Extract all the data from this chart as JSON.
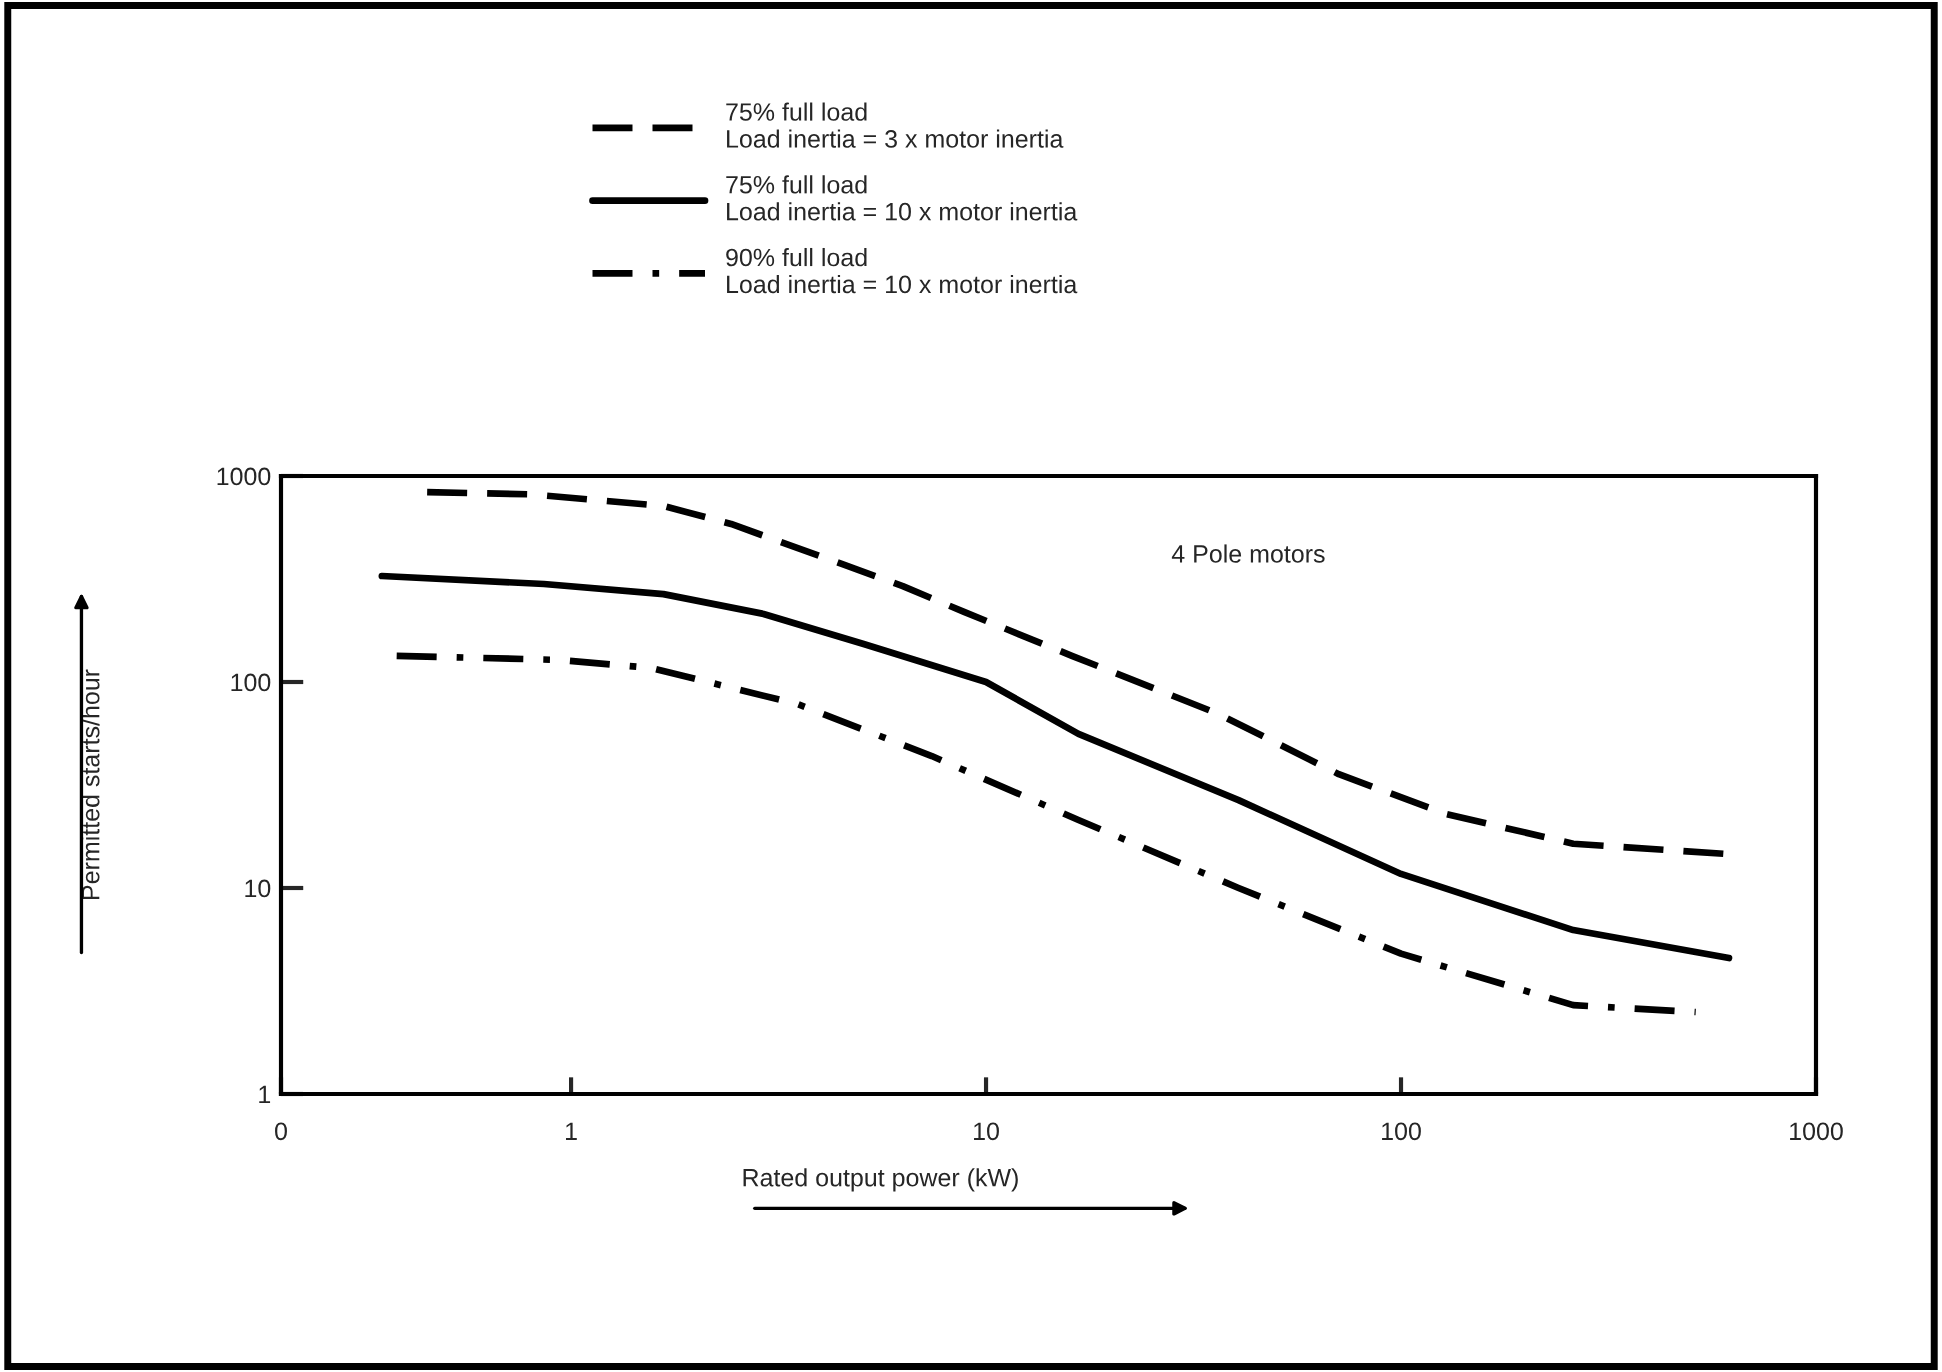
{
  "chart_data": {
    "type": "line",
    "xlabel": "Rated output power (kW)",
    "ylabel": "Permitted starts/hour",
    "log": "xy",
    "xlim": [
      0.2,
      1000
    ],
    "xticks": [
      {
        "value": 0.2,
        "label": "0"
      },
      1,
      10,
      100,
      1000
    ],
    "ylim": [
      1,
      1000
    ],
    "yticks": [
      1,
      10,
      100,
      1000
    ],
    "grid": false,
    "legend": "top left",
    "marker": "none",
    "annotations": [
      "4 Pole motors"
    ],
    "series": [
      {
        "name": "75% full load\nLoad inertia = 3 x motor inertia",
        "color": "#000000",
        "line_style": "dashed",
        "x": [
          0.45,
          0.8,
          1.67,
          2.43,
          4.49,
          6.3,
          8.85,
          16.1,
          36.3,
          70.8,
          128,
          260,
          617
        ],
        "values": [
          835,
          815,
          715,
          585,
          374,
          292,
          219,
          134,
          70,
          35.7,
          22.9,
          16.4,
          14.6
        ]
      },
      {
        "name": "75% full load\nLoad inertia = 10 x motor inertia",
        "color": "#000000",
        "line_style": "solid",
        "x": [
          0.35,
          0.86,
          1.67,
          2.91,
          5.07,
          10,
          16.7,
          40.6,
          100,
          260,
          617
        ],
        "values": [
          327,
          299,
          267,
          214,
          153,
          100,
          56,
          26.7,
          11.7,
          6.25,
          4.57
        ]
      },
      {
        "name": "90% full load\nLoad inertia = 10 x motor inertia",
        "color": "#000000",
        "line_style": "dashdot",
        "x": [
          0.38,
          0.93,
          1.56,
          3.52,
          7.4,
          16.7,
          40.6,
          100,
          260,
          513
        ],
        "values": [
          134,
          128,
          117,
          78,
          43.7,
          21.4,
          10,
          4.8,
          2.7,
          2.5
        ]
      }
    ]
  }
}
